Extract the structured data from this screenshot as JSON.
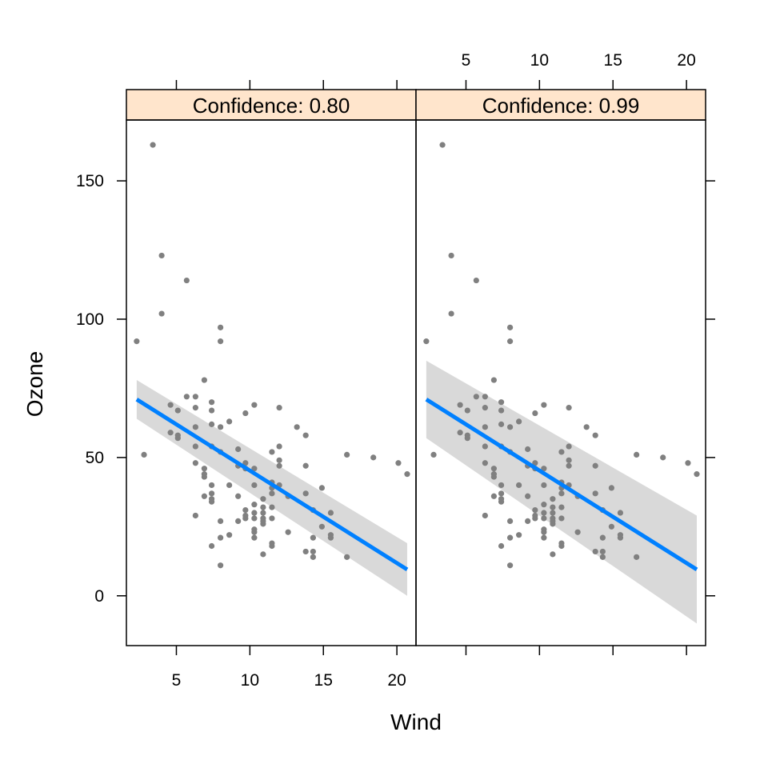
{
  "chart_data": {
    "type": "scatter",
    "xlabel": "Wind",
    "ylabel": "Ozone",
    "xlim": [
      1.6,
      21.3
    ],
    "ylim": [
      -18,
      172
    ],
    "x_ticks": [
      5,
      10,
      15,
      20
    ],
    "y_ticks": [
      0,
      50,
      100,
      150
    ],
    "strip_color": "#ffe5cc",
    "point_color": "#808080",
    "line_color": "#0080ff",
    "band_color": "#d9d9d9",
    "points": [
      [
        2.3,
        92
      ],
      [
        2.8,
        51
      ],
      [
        3.4,
        163
      ],
      [
        4.0,
        123
      ],
      [
        4.0,
        102
      ],
      [
        4.6,
        69
      ],
      [
        4.6,
        59
      ],
      [
        5.1,
        67
      ],
      [
        5.1,
        58
      ],
      [
        5.1,
        57
      ],
      [
        5.7,
        114
      ],
      [
        5.7,
        72
      ],
      [
        6.3,
        72
      ],
      [
        6.3,
        68
      ],
      [
        6.3,
        61
      ],
      [
        6.3,
        54
      ],
      [
        6.3,
        48
      ],
      [
        6.3,
        29
      ],
      [
        6.9,
        78
      ],
      [
        6.9,
        46
      ],
      [
        6.9,
        44
      ],
      [
        6.9,
        43
      ],
      [
        6.9,
        36
      ],
      [
        7.4,
        70
      ],
      [
        7.4,
        67
      ],
      [
        7.4,
        62
      ],
      [
        7.4,
        54
      ],
      [
        7.4,
        40
      ],
      [
        7.4,
        37
      ],
      [
        7.4,
        35
      ],
      [
        7.4,
        34
      ],
      [
        7.4,
        18
      ],
      [
        8.0,
        97
      ],
      [
        8.0,
        92
      ],
      [
        8.0,
        61
      ],
      [
        8.0,
        52
      ],
      [
        8.0,
        27
      ],
      [
        8.0,
        21
      ],
      [
        8.0,
        11
      ],
      [
        8.6,
        63
      ],
      [
        8.6,
        40
      ],
      [
        8.6,
        22
      ],
      [
        9.2,
        53
      ],
      [
        9.2,
        47
      ],
      [
        9.2,
        36
      ],
      [
        9.2,
        27
      ],
      [
        9.7,
        66
      ],
      [
        9.7,
        48
      ],
      [
        9.7,
        46
      ],
      [
        9.7,
        31
      ],
      [
        9.7,
        29
      ],
      [
        9.7,
        28
      ],
      [
        10.3,
        69
      ],
      [
        10.3,
        46
      ],
      [
        10.3,
        40
      ],
      [
        10.3,
        33
      ],
      [
        10.3,
        30
      ],
      [
        10.3,
        28
      ],
      [
        10.3,
        24
      ],
      [
        10.3,
        23
      ],
      [
        10.3,
        21
      ],
      [
        10.9,
        35
      ],
      [
        10.9,
        32
      ],
      [
        10.9,
        30
      ],
      [
        10.9,
        28
      ],
      [
        10.9,
        27
      ],
      [
        10.9,
        26
      ],
      [
        10.9,
        15
      ],
      [
        11.5,
        52
      ],
      [
        11.5,
        41
      ],
      [
        11.5,
        39
      ],
      [
        11.5,
        37
      ],
      [
        11.5,
        32
      ],
      [
        11.5,
        28
      ],
      [
        11.5,
        19
      ],
      [
        11.5,
        18
      ],
      [
        12.0,
        68
      ],
      [
        12.0,
        54
      ],
      [
        12.0,
        49
      ],
      [
        12.0,
        47
      ],
      [
        12.0,
        40
      ],
      [
        12.6,
        36
      ],
      [
        12.6,
        23
      ],
      [
        13.2,
        61
      ],
      [
        13.8,
        58
      ],
      [
        13.8,
        47
      ],
      [
        13.8,
        37
      ],
      [
        13.8,
        16
      ],
      [
        14.3,
        31
      ],
      [
        14.3,
        21
      ],
      [
        14.3,
        16
      ],
      [
        14.3,
        14
      ],
      [
        14.9,
        39
      ],
      [
        14.9,
        25
      ],
      [
        15.5,
        30
      ],
      [
        15.5,
        22
      ],
      [
        15.5,
        21
      ],
      [
        16.6,
        51
      ],
      [
        16.6,
        14
      ],
      [
        18.4,
        50
      ],
      [
        20.1,
        48
      ],
      [
        20.7,
        44
      ]
    ],
    "fit": {
      "x0": 2.3,
      "y0": 71,
      "x1": 20.7,
      "y1": 9.5
    },
    "panels": [
      {
        "strip": "Confidence: 0.80",
        "band": {
          "upper0": 78,
          "lower0": 64,
          "upper1": 19,
          "lower1": 0
        }
      },
      {
        "strip": "Confidence: 0.99",
        "band": {
          "upper0": 85,
          "lower0": 57,
          "upper1": 29,
          "lower1": -10
        }
      }
    ]
  }
}
